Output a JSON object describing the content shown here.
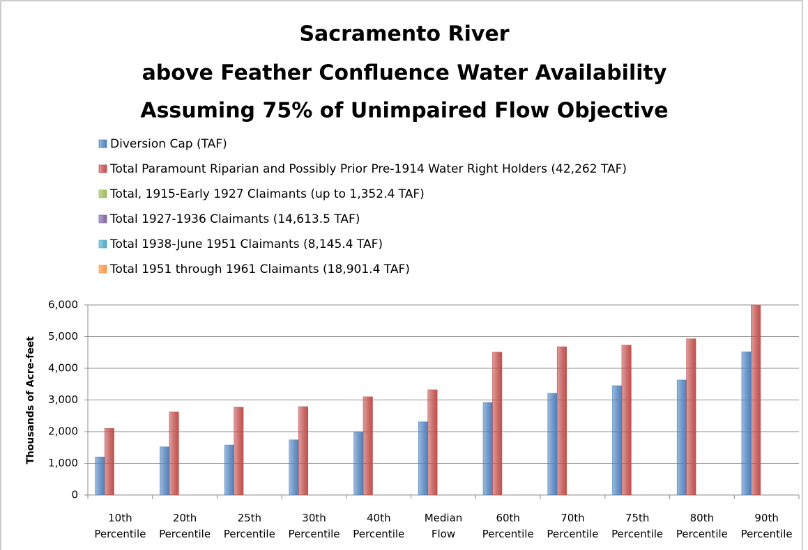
{
  "chart_data": {
    "type": "bar",
    "title": [
      "Sacramento River",
      "above Feather Confluence Water Availability",
      "Assuming 75% of Unimpaired Flow Objective"
    ],
    "ylabel": "Thousands of Acre-feet",
    "categories": [
      "10th Percentile",
      "20th Percentile",
      "25th Percentile",
      "30th Percentile",
      "40th Percentile",
      "Median Flow",
      "60th Percentile",
      "70th Percentile",
      "75th Percentile",
      "80th Percentile",
      "90th Percentile"
    ],
    "series": [
      {
        "name": "Diversion Cap (TAF)",
        "color": "#4f81bd",
        "values": [
          1200,
          1520,
          1580,
          1740,
          1980,
          2310,
          2920,
          3210,
          3450,
          3630,
          4520
        ]
      },
      {
        "name": "Total Paramount Riparian and Possibly Prior Pre-1914  Water Right Holders (42,262 TAF)",
        "color": "#c0504d",
        "values": [
          2100,
          2620,
          2770,
          2790,
          3100,
          3320,
          4510,
          4680,
          4730,
          4930,
          6000
        ]
      },
      {
        "name": "Total, 1915-Early 1927 Claimants (up to 1,352.4 TAF)",
        "color": "#9bbb59",
        "values": [
          0,
          0,
          0,
          0,
          0,
          0,
          0,
          0,
          0,
          0,
          0
        ]
      },
      {
        "name": "Total 1927-1936 Claimants (14,613.5 TAF)",
        "color": "#8064a2",
        "values": [
          0,
          0,
          0,
          0,
          0,
          0,
          0,
          0,
          0,
          0,
          0
        ]
      },
      {
        "name": "Total 1938-June 1951 Claimants (8,145.4 TAF)",
        "color": "#4bacc6",
        "values": [
          0,
          0,
          0,
          0,
          0,
          0,
          0,
          0,
          0,
          0,
          0
        ]
      },
      {
        "name": "Total 1951 through 1961 Claimants (18,901.4 TAF)",
        "color": "#f79646",
        "values": [
          0,
          0,
          0,
          0,
          0,
          0,
          0,
          0,
          0,
          0,
          0
        ]
      }
    ],
    "ylim": [
      0,
      6000
    ],
    "yticks": [
      0,
      {
        "value": 1000,
        "label": "1,000"
      },
      {
        "value": 2000,
        "label": "2,000"
      },
      {
        "value": 3000,
        "label": "3,000"
      },
      {
        "value": 4000,
        "label": "4,000"
      },
      {
        "value": 5000,
        "label": "5,000"
      },
      {
        "value": 6000,
        "label": "6,000"
      }
    ],
    "grid": true
  }
}
